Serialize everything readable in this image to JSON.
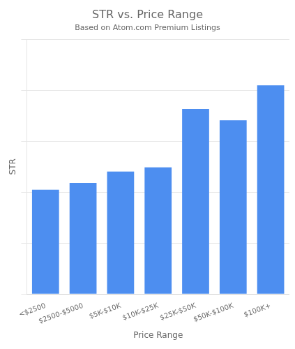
{
  "chart_data": {
    "type": "bar",
    "title": "STR vs. Price Range",
    "subtitle": "Based on Atom.com Premium Listings",
    "xlabel": "Price Range",
    "ylabel": "STR",
    "categories": [
      "<$2500",
      "$2500-$5000",
      "$5K-$10K",
      "$10K-$25K",
      "$25K-$50K",
      "$50K-$100K",
      "$100K+"
    ],
    "values": [
      1.55,
      1.65,
      1.82,
      1.88,
      2.75,
      2.58,
      3.1
    ],
    "color": "#4d8ef0",
    "ylim": [
      0,
      3.782
    ],
    "yticks": [
      0,
      0.7564,
      1.5128,
      2.2692,
      3.0256,
      3.782
    ],
    "grid": true,
    "tick_labels": "x"
  }
}
